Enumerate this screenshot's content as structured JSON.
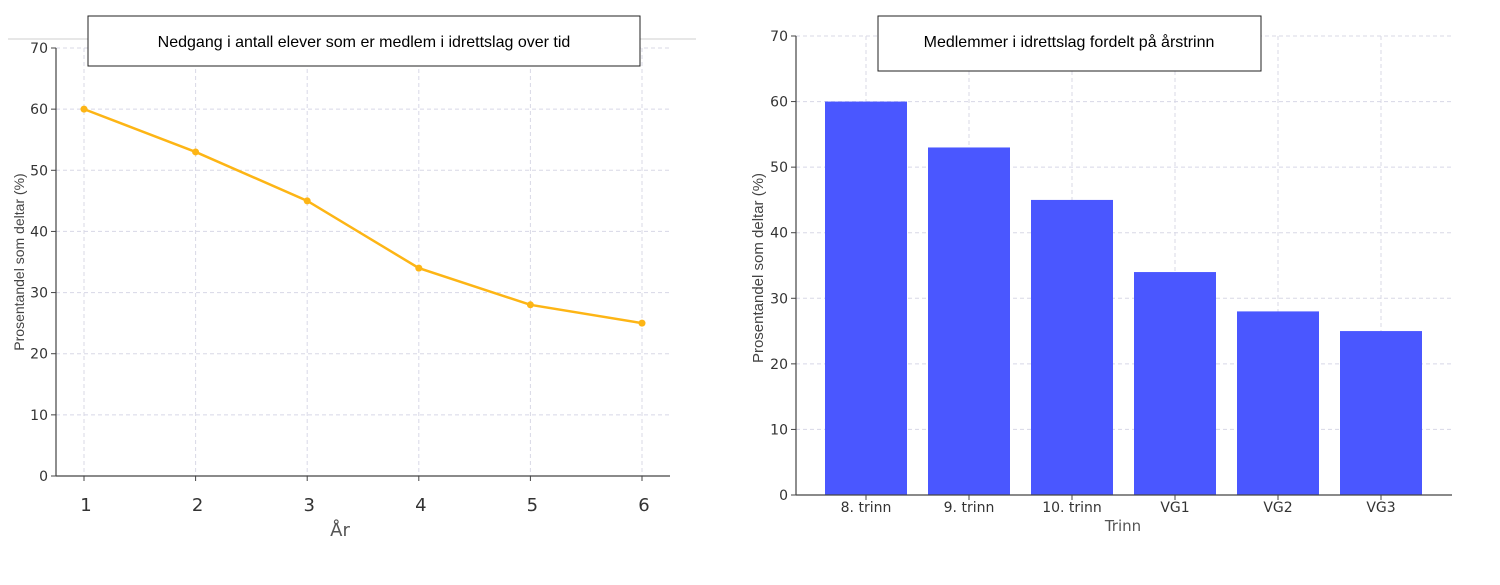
{
  "chart_data": [
    {
      "type": "line",
      "title": "Nedgang i antall elever som er medlem i idrettslag over tid",
      "xlabel": "År",
      "ylabel": "Prosentandel som deltar (%)",
      "x": [
        1,
        2,
        3,
        4,
        5,
        6
      ],
      "values": [
        60,
        53,
        45,
        34,
        28,
        25
      ],
      "ylim": [
        0,
        70
      ],
      "yticks": [
        0,
        10,
        20,
        30,
        40,
        50,
        60,
        70
      ],
      "xticks": [
        "1",
        "2",
        "3",
        "4",
        "5",
        "6"
      ],
      "grid": true,
      "color": "#FDB515"
    },
    {
      "type": "bar",
      "title": "Medlemmer i idrettslag fordelt på årstrinn",
      "xlabel": "Trinn",
      "ylabel": "Prosentandel som deltar (%)",
      "categories": [
        "8. trinn",
        "9. trinn",
        "10. trinn",
        "VG1",
        "VG2",
        "VG3"
      ],
      "values": [
        60,
        53,
        45,
        34,
        28,
        25
      ],
      "ylim": [
        0,
        70
      ],
      "yticks": [
        0,
        10,
        20,
        30,
        40,
        50,
        60,
        70
      ],
      "grid": true,
      "color": "#4A57FF"
    }
  ]
}
